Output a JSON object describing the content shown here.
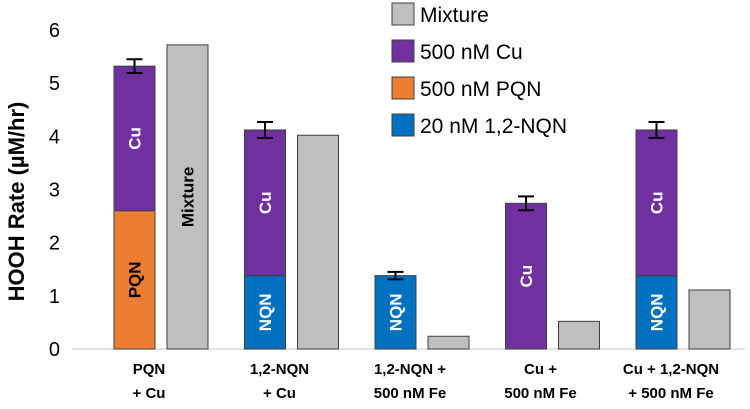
{
  "chart_data": {
    "type": "bar",
    "ylabel": "HOOH Rate (µM/hr)",
    "ylim": [
      0,
      6
    ],
    "yticks": [
      0,
      1,
      2,
      3,
      4,
      5,
      6
    ],
    "grid": false,
    "legend_position": "top-right",
    "colors": {
      "mixture": "#bfbfbf",
      "cu": "#7030a0",
      "pqn": "#ed7d31",
      "nqn": "#0070c0",
      "error": "#000000"
    },
    "legend": [
      {
        "key": "mixture",
        "label": "Mixture"
      },
      {
        "key": "cu",
        "label": "500 nM Cu"
      },
      {
        "key": "pqn",
        "label": "500 nM PQN"
      },
      {
        "key": "nqn",
        "label": "20 nM 1,2-NQN"
      }
    ],
    "categories": [
      {
        "label_lines": [
          "PQN",
          "+ Cu"
        ]
      },
      {
        "label_lines": [
          "1,2-NQN",
          "+ Cu"
        ]
      },
      {
        "label_lines": [
          "1,2-NQN +",
          "500 nM Fe"
        ]
      },
      {
        "label_lines": [
          "Cu +",
          "500 nM Fe"
        ]
      },
      {
        "label_lines": [
          "Cu + 1,2-NQN",
          "+ 500 nM Fe"
        ]
      }
    ],
    "stacked_bars": [
      {
        "category": 0,
        "error": 0.13,
        "segments": [
          {
            "series": "pqn",
            "value": 2.6,
            "label": "PQN"
          },
          {
            "series": "cu",
            "value": 2.72,
            "label": "Cu"
          }
        ]
      },
      {
        "category": 1,
        "error": 0.15,
        "segments": [
          {
            "series": "nqn",
            "value": 1.38,
            "label": ""
          },
          {
            "series": "cu",
            "value": 2.74,
            "label": "Cu"
          }
        ]
      },
      {
        "category": 2,
        "error": 0.07,
        "segments": [
          {
            "series": "nqn",
            "value": 1.38,
            "label": "NQN"
          }
        ]
      },
      {
        "category": 3,
        "error": 0.13,
        "segments": [
          {
            "series": "cu",
            "value": 2.74,
            "label": "Cu"
          }
        ]
      },
      {
        "category": 4,
        "error": 0.15,
        "segments": [
          {
            "series": "nqn",
            "value": 1.38,
            "label": "NQN"
          },
          {
            "series": "cu",
            "value": 2.74,
            "label": "Cu"
          }
        ]
      }
    ],
    "nqn_label_bar1": "NQN",
    "mixture_bars": [
      {
        "category": 0,
        "value": 5.72,
        "label": "Mixture"
      },
      {
        "category": 1,
        "value": 4.02,
        "label": ""
      },
      {
        "category": 2,
        "value": 0.24,
        "label": ""
      },
      {
        "category": 3,
        "value": 0.52,
        "label": ""
      },
      {
        "category": 4,
        "value": 1.11,
        "label": ""
      }
    ]
  }
}
